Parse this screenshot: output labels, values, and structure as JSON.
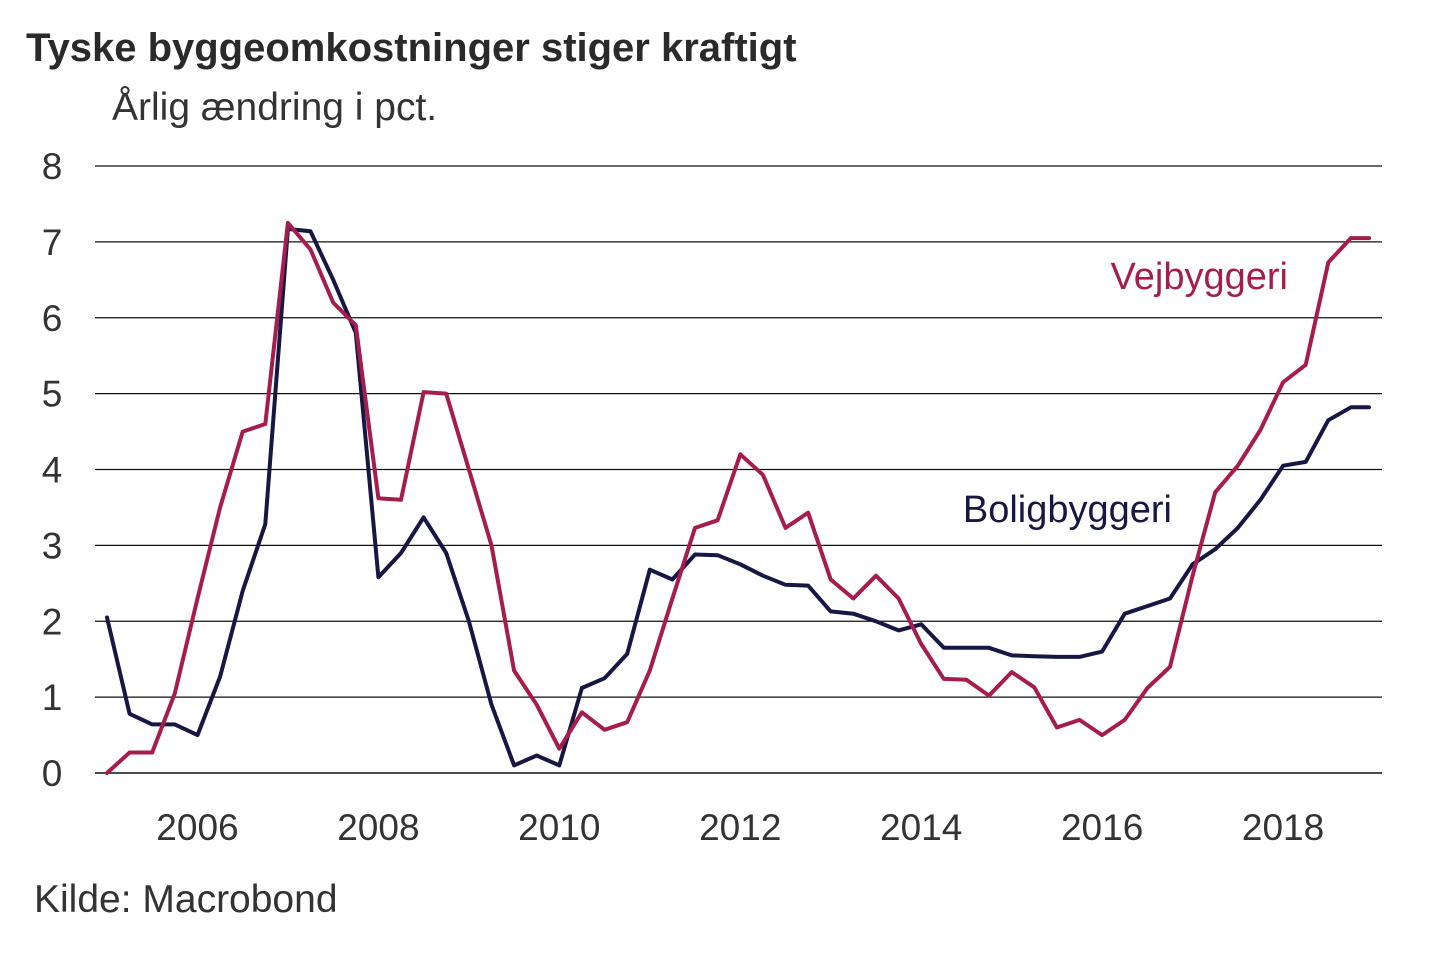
{
  "title": "Tyske byggeomkostninger stiger kraftigt",
  "subtitle": "Årlig ændring i pct.",
  "source": "Kilde: Macrobond",
  "colors": {
    "vejbyggeri": "#a61d4d",
    "boligbyggeri": "#161743",
    "gridline": "#111111"
  },
  "chart_data": {
    "type": "line",
    "title": "Tyske byggeomkostninger stiger kraftigt",
    "ylabel": "Årlig ændring i pct.",
    "xlabel": "",
    "ylim": [
      0,
      8
    ],
    "xlim": [
      2005.0,
      2018.95
    ],
    "yticks": [
      "0",
      "1",
      "2",
      "3",
      "4",
      "5",
      "6",
      "7",
      "8"
    ],
    "xticks": [
      "2006",
      "2008",
      "2010",
      "2012",
      "2014",
      "2016",
      "2018"
    ],
    "x": [
      2005.0,
      2005.25,
      2005.5,
      2005.75,
      2006.0,
      2006.25,
      2006.5,
      2006.75,
      2007.0,
      2007.25,
      2007.5,
      2007.75,
      2008.0,
      2008.25,
      2008.5,
      2008.75,
      2009.0,
      2009.25,
      2009.5,
      2009.75,
      2010.0,
      2010.25,
      2010.5,
      2010.75,
      2011.0,
      2011.25,
      2011.5,
      2011.75,
      2012.0,
      2012.25,
      2012.5,
      2012.75,
      2013.0,
      2013.25,
      2013.5,
      2013.75,
      2014.0,
      2014.25,
      2014.5,
      2014.75,
      2015.0,
      2015.25,
      2015.5,
      2015.75,
      2016.0,
      2016.25,
      2016.5,
      2016.75,
      2017.0,
      2017.25,
      2017.5,
      2017.75,
      2018.0,
      2018.25,
      2018.5,
      2018.75,
      2018.95
    ],
    "series": [
      {
        "name": "Vejbyggeri",
        "color": "#a61d4d",
        "values": [
          0.0,
          0.27,
          0.27,
          1.05,
          2.3,
          3.5,
          4.5,
          4.6,
          7.25,
          6.9,
          6.2,
          5.9,
          3.62,
          3.6,
          5.02,
          5.0,
          4.0,
          3.0,
          1.35,
          0.9,
          0.32,
          0.8,
          0.57,
          0.67,
          1.35,
          2.3,
          3.23,
          3.33,
          4.2,
          3.93,
          3.23,
          3.43,
          2.55,
          2.3,
          2.6,
          2.3,
          1.7,
          1.24,
          1.23,
          1.02,
          1.33,
          1.13,
          0.6,
          0.7,
          0.5,
          0.7,
          1.12,
          1.4,
          2.6,
          3.7,
          4.05,
          4.52,
          5.15,
          5.38,
          6.73,
          7.05,
          7.05
        ]
      },
      {
        "name": "Boligbyggeri",
        "color": "#161743",
        "values": [
          2.05,
          0.78,
          0.64,
          0.64,
          0.5,
          1.27,
          2.4,
          3.28,
          7.17,
          7.14,
          6.5,
          5.8,
          2.58,
          2.9,
          3.37,
          2.9,
          2.0,
          0.9,
          0.1,
          0.23,
          0.1,
          1.12,
          1.25,
          1.57,
          2.68,
          2.55,
          2.88,
          2.87,
          2.75,
          2.6,
          2.48,
          2.47,
          2.13,
          2.1,
          2.0,
          1.88,
          1.96,
          1.65,
          1.65,
          1.65,
          1.55,
          1.54,
          1.53,
          1.53,
          1.6,
          2.1,
          2.2,
          2.3,
          2.75,
          2.95,
          3.23,
          3.6,
          4.05,
          4.1,
          4.65,
          4.82,
          4.82
        ]
      }
    ],
    "annotations": [
      {
        "text": "Vejbyggeri",
        "series": "Vejbyggeri"
      },
      {
        "text": "Boligbyggeri",
        "series": "Boligbyggeri"
      }
    ]
  }
}
